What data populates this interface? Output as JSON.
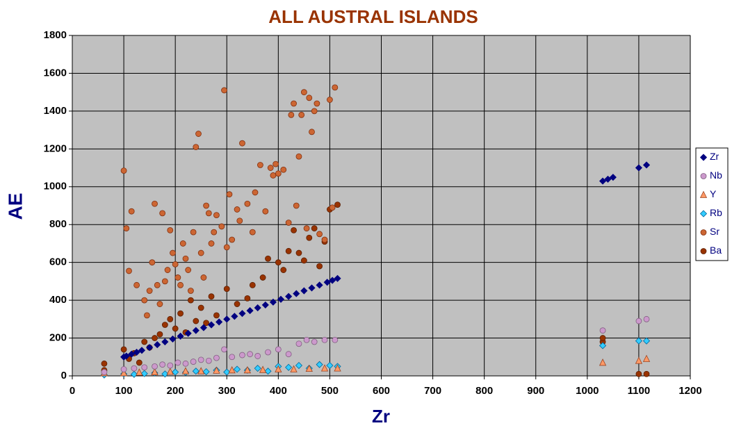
{
  "chart_data": {
    "type": "scatter",
    "title": "ALL AUSTRAL ISLANDS",
    "x_label": "Zr",
    "y_label": "AE",
    "xlim": [
      0,
      1200
    ],
    "xticks": [
      0,
      100,
      200,
      300,
      400,
      500,
      600,
      700,
      800,
      900,
      1000,
      1100,
      1200
    ],
    "ylim": [
      0,
      1800
    ],
    "yticks": [
      0,
      200,
      400,
      600,
      800,
      1000,
      1200,
      1400,
      1600,
      1800
    ],
    "grid": true,
    "legend": "right",
    "background": "#c0c0c0",
    "series": [
      {
        "name": "Zr",
        "color": "#000080",
        "edgecolor": "#000080",
        "marker": "diamond",
        "x": [
          100,
          105,
          115,
          125,
          135,
          150,
          165,
          180,
          195,
          210,
          225,
          240,
          255,
          270,
          285,
          300,
          315,
          330,
          345,
          360,
          375,
          390,
          405,
          420,
          435,
          450,
          465,
          480,
          495,
          505,
          515,
          1030,
          1040,
          1050,
          1100,
          1115
        ],
        "values": [
          100,
          105,
          115,
          125,
          135,
          150,
          165,
          180,
          195,
          210,
          225,
          240,
          255,
          270,
          285,
          300,
          315,
          330,
          345,
          360,
          375,
          390,
          405,
          420,
          435,
          450,
          465,
          480,
          495,
          505,
          515,
          1030,
          1040,
          1050,
          1100,
          1115
        ]
      },
      {
        "name": "Nb",
        "color": "#cc99cc",
        "edgecolor": "#806080",
        "marker": "circle",
        "x": [
          62,
          100,
          120,
          140,
          160,
          175,
          190,
          205,
          220,
          235,
          250,
          265,
          280,
          295,
          310,
          330,
          345,
          360,
          380,
          400,
          420,
          440,
          455,
          470,
          490,
          510,
          1030,
          1100,
          1115
        ],
        "values": [
          20,
          35,
          40,
          45,
          50,
          60,
          55,
          70,
          65,
          75,
          85,
          80,
          95,
          140,
          100,
          110,
          115,
          105,
          125,
          140,
          115,
          170,
          190,
          180,
          190,
          190,
          240,
          290,
          300
        ]
      },
      {
        "name": "Y",
        "color": "#ff9966",
        "edgecolor": "#994422",
        "marker": "triangle",
        "x": [
          62,
          100,
          130,
          160,
          190,
          220,
          250,
          280,
          310,
          340,
          370,
          400,
          430,
          460,
          490,
          515,
          1030,
          1100,
          1115
        ],
        "values": [
          15,
          15,
          18,
          20,
          22,
          25,
          25,
          28,
          30,
          30,
          32,
          35,
          35,
          38,
          40,
          40,
          70,
          80,
          90
        ]
      },
      {
        "name": "Rb",
        "color": "#33ccff",
        "edgecolor": "#006699",
        "marker": "diamond",
        "x": [
          62,
          100,
          120,
          140,
          160,
          180,
          200,
          220,
          240,
          260,
          280,
          300,
          320,
          340,
          360,
          380,
          400,
          420,
          440,
          460,
          480,
          500,
          515,
          1030,
          1100,
          1115
        ],
        "values": [
          5,
          10,
          8,
          12,
          15,
          10,
          20,
          18,
          25,
          22,
          30,
          20,
          35,
          30,
          40,
          25,
          50,
          45,
          55,
          40,
          60,
          55,
          50,
          160,
          185,
          185
        ]
      },
      {
        "name": "Sr",
        "color": "#cc6633",
        "edgecolor": "#803010",
        "marker": "circle",
        "x": [
          100,
          105,
          110,
          115,
          125,
          140,
          145,
          150,
          155,
          160,
          165,
          170,
          175,
          180,
          185,
          190,
          195,
          200,
          205,
          210,
          215,
          220,
          225,
          230,
          235,
          240,
          245,
          250,
          255,
          260,
          265,
          270,
          275,
          280,
          290,
          295,
          300,
          305,
          310,
          320,
          325,
          330,
          340,
          350,
          355,
          365,
          375,
          385,
          390,
          395,
          400,
          410,
          420,
          425,
          430,
          435,
          440,
          445,
          450,
          455,
          460,
          465,
          470,
          475,
          480,
          490,
          500,
          505,
          510
        ],
        "values": [
          1085,
          780,
          555,
          870,
          480,
          400,
          320,
          450,
          600,
          910,
          480,
          380,
          860,
          500,
          560,
          770,
          650,
          590,
          520,
          480,
          700,
          620,
          560,
          450,
          760,
          1210,
          1280,
          650,
          520,
          900,
          860,
          700,
          760,
          850,
          790,
          1510,
          680,
          960,
          720,
          880,
          820,
          1230,
          910,
          760,
          970,
          1115,
          870,
          1100,
          1060,
          1120,
          1070,
          1090,
          810,
          1380,
          1440,
          900,
          1160,
          1380,
          1500,
          780,
          1470,
          1290,
          1400,
          1440,
          750,
          720,
          1460,
          890,
          1525
        ]
      },
      {
        "name": "Ba",
        "color": "#993300",
        "edgecolor": "#5a1e00",
        "marker": "circle",
        "x": [
          62,
          62,
          100,
          110,
          120,
          130,
          140,
          150,
          160,
          170,
          180,
          190,
          200,
          210,
          220,
          230,
          240,
          250,
          260,
          270,
          280,
          300,
          320,
          340,
          350,
          370,
          380,
          400,
          410,
          420,
          430,
          440,
          450,
          460,
          470,
          480,
          490,
          500,
          515,
          1030,
          1030,
          1100,
          1115
        ],
        "values": [
          65,
          30,
          140,
          90,
          120,
          70,
          180,
          150,
          200,
          220,
          270,
          300,
          250,
          330,
          230,
          400,
          290,
          360,
          280,
          420,
          320,
          460,
          380,
          410,
          480,
          520,
          620,
          600,
          560,
          660,
          770,
          650,
          610,
          730,
          780,
          580,
          710,
          880,
          905,
          180,
          200,
          10,
          10
        ]
      }
    ]
  }
}
